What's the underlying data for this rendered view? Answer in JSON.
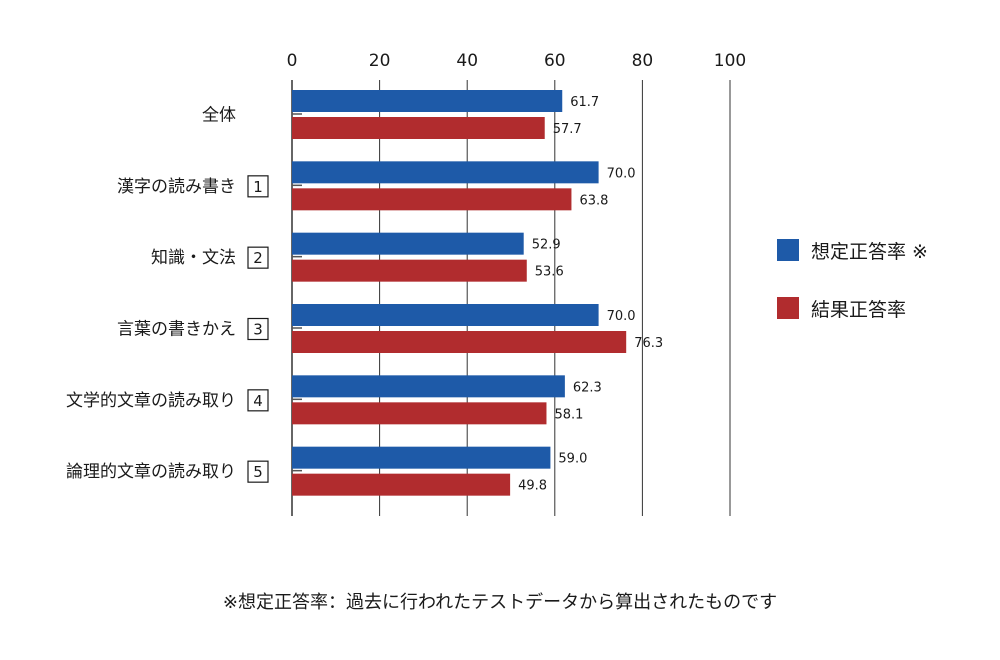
{
  "chart_data": {
    "type": "bar",
    "orientation": "horizontal",
    "categories": [
      {
        "label": "全体",
        "number": ""
      },
      {
        "label": "漢字の読み書き",
        "number": "1"
      },
      {
        "label": "知識・文法",
        "number": "2"
      },
      {
        "label": "言葉の書きかえ",
        "number": "3"
      },
      {
        "label": "文学的文章の読み取り",
        "number": "4"
      },
      {
        "label": "論理的文章の読み取り",
        "number": "5"
      }
    ],
    "series": [
      {
        "name": "想定正答率 ※",
        "color": "#1e5aa8",
        "values": [
          61.7,
          70.0,
          52.9,
          70.0,
          62.3,
          59.0
        ]
      },
      {
        "name": "結果正答率",
        "color": "#b12c2e",
        "values": [
          57.7,
          63.8,
          53.6,
          76.3,
          58.1,
          49.8
        ]
      }
    ],
    "xlim": [
      0,
      100
    ],
    "xticks": [
      0,
      20,
      40,
      60,
      80,
      100
    ],
    "grid": true,
    "legend_position": "right"
  },
  "footnote": "※想定正答率：過去に行われたテストデータから算出されたものです"
}
